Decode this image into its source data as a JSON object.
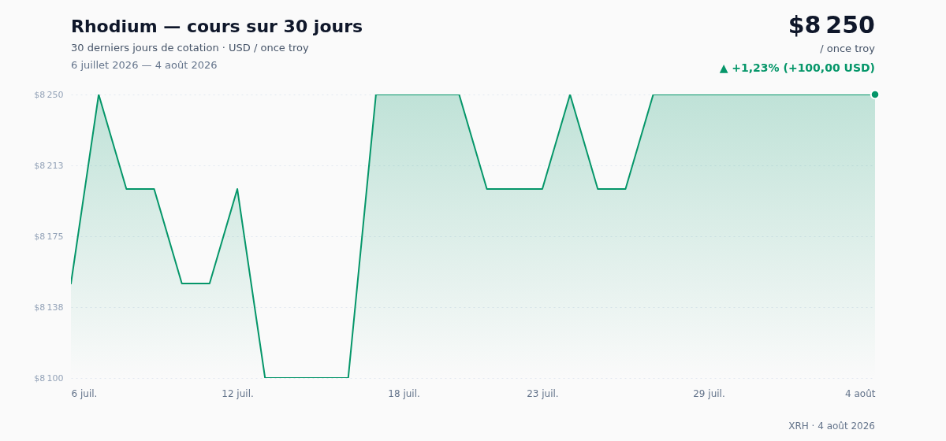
{
  "chart_data": {
    "type": "area",
    "title": "Rhodium — cours sur 30 jours",
    "subtitle": "30 derniers jours de cotation · USD / once troy",
    "annotations": [
      "6 juillet 2026 — 4 août 2026",
      "$8 250",
      "/ once troy",
      "▲ +1,23% (+100,00 USD)",
      "XRH · 4 août 2026"
    ],
    "x": [
      "2026-07-06",
      "2026-07-07",
      "2026-07-08",
      "2026-07-09",
      "2026-07-10",
      "2026-07-11",
      "2026-07-12",
      "2026-07-13",
      "2026-07-14",
      "2026-07-15",
      "2026-07-16",
      "2026-07-17",
      "2026-07-18",
      "2026-07-19",
      "2026-07-20",
      "2026-07-21",
      "2026-07-22",
      "2026-07-23",
      "2026-07-24",
      "2026-07-25",
      "2026-07-26",
      "2026-07-27",
      "2026-07-28",
      "2026-07-29",
      "2026-07-30",
      "2026-07-31",
      "2026-08-01",
      "2026-08-02",
      "2026-08-03",
      "2026-08-04"
    ],
    "series": [
      {
        "color": "#059669",
        "values": [
          8150,
          8250,
          8200,
          8200,
          8150,
          8150,
          8200,
          8100,
          8100,
          8100,
          8100,
          8250,
          8250,
          8250,
          8250,
          8200,
          8200,
          8200,
          8250,
          8200,
          8200,
          8250,
          8250,
          8250,
          8250,
          8250,
          8250,
          8250,
          8250,
          8250
        ]
      },
      {
        "type": "scatter",
        "color": "#059669",
        "marker": "circle",
        "x": [
          "2026-08-04"
        ],
        "values": [
          8250
        ]
      }
    ],
    "xlim": [
      "2026-07-06",
      "2026-08-04"
    ],
    "xticks": [
      {
        "value": "2026-07-06",
        "label": "6 juil."
      },
      {
        "value": "2026-07-12",
        "label": "12 juil."
      },
      {
        "value": "2026-07-18",
        "label": "18 juil."
      },
      {
        "value": "2026-07-23",
        "label": "23 juil."
      },
      {
        "value": "2026-07-29",
        "label": "29 juil."
      },
      {
        "value": "2026-08-04",
        "label": "4 août"
      }
    ],
    "ylim": [
      8100,
      8250
    ],
    "yticks": [
      {
        "value": 8100,
        "label": "$8 100"
      },
      {
        "value": 8137.5,
        "label": "$8 138"
      },
      {
        "value": 8175,
        "label": "$8 175"
      },
      {
        "value": 8212.5,
        "label": "$8 213"
      },
      {
        "value": 8250,
        "label": "$8 250"
      }
    ],
    "grid": "y",
    "line_style": "solid"
  }
}
